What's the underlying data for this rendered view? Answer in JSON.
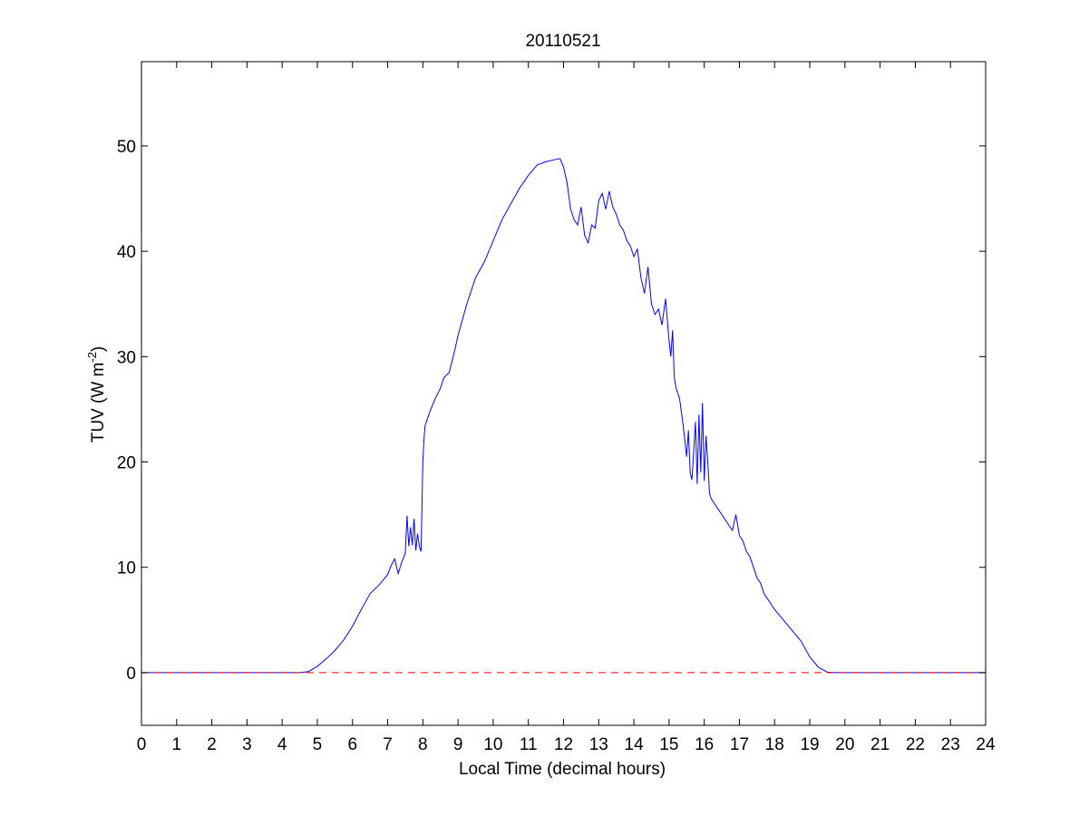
{
  "chart_data": {
    "type": "line",
    "title": "20110521",
    "xlabel": "Local Time (decimal hours)",
    "ylabel": {
      "main": "TUV (W m",
      "superscript": "-2",
      "close": ")"
    },
    "xlim": [
      0,
      24
    ],
    "ylim": [
      -5,
      58
    ],
    "x_ticks": [
      0,
      1,
      2,
      3,
      4,
      5,
      6,
      7,
      8,
      9,
      10,
      11,
      12,
      13,
      14,
      15,
      16,
      17,
      18,
      19,
      20,
      21,
      22,
      23,
      24
    ],
    "y_ticks": [
      0,
      10,
      20,
      30,
      40,
      50
    ],
    "grid": false,
    "series": [
      {
        "color": "#0000ff",
        "style": "solid",
        "x": [
          0,
          4.5,
          4.75,
          5.0,
          5.25,
          5.5,
          5.75,
          6.0,
          6.25,
          6.5,
          6.75,
          7.0,
          7.1,
          7.2,
          7.3,
          7.4,
          7.5,
          7.55,
          7.6,
          7.65,
          7.7,
          7.75,
          7.8,
          7.85,
          7.9,
          7.95,
          8.0,
          8.03,
          8.06,
          8.1,
          8.2,
          8.35,
          8.5,
          8.6,
          8.75,
          8.9,
          9.0,
          9.25,
          9.5,
          9.75,
          10.0,
          10.25,
          10.5,
          10.75,
          11.0,
          11.25,
          11.5,
          11.75,
          11.9,
          12.0,
          12.1,
          12.2,
          12.3,
          12.4,
          12.5,
          12.6,
          12.7,
          12.8,
          12.9,
          13.0,
          13.1,
          13.2,
          13.3,
          13.4,
          13.5,
          13.6,
          13.7,
          13.8,
          13.9,
          14.0,
          14.1,
          14.2,
          14.3,
          14.4,
          14.5,
          14.6,
          14.7,
          14.8,
          14.9,
          15.0,
          15.05,
          15.1,
          15.15,
          15.2,
          15.3,
          15.4,
          15.45,
          15.5,
          15.55,
          15.6,
          15.65,
          15.7,
          15.75,
          15.8,
          15.85,
          15.9,
          15.95,
          16.0,
          16.05,
          16.1,
          16.15,
          16.2,
          16.3,
          16.4,
          16.5,
          16.6,
          16.7,
          16.8,
          16.9,
          17.0,
          17.1,
          17.2,
          17.3,
          17.4,
          17.5,
          17.6,
          17.7,
          17.8,
          17.9,
          18.0,
          18.25,
          18.5,
          18.75,
          19.0,
          19.25,
          19.5,
          19.75,
          20.0,
          24.0
        ],
        "y": [
          0,
          0,
          0.1,
          0.6,
          1.3,
          2.1,
          3.1,
          4.4,
          6.0,
          7.5,
          8.3,
          9.3,
          10.2,
          10.8,
          9.4,
          10.5,
          11.3,
          14.9,
          12.0,
          13.8,
          12.1,
          14.6,
          11.6,
          13.2,
          12.0,
          11.5,
          20.0,
          22.0,
          23.4,
          23.8,
          24.8,
          26.0,
          27.0,
          28.0,
          28.5,
          30.5,
          32.0,
          35.0,
          37.5,
          39.0,
          41.0,
          43.0,
          44.5,
          46.0,
          47.2,
          48.2,
          48.5,
          48.7,
          48.8,
          48.0,
          46.5,
          44.0,
          43.0,
          42.5,
          44.2,
          41.5,
          40.8,
          42.5,
          42.2,
          44.8,
          45.5,
          44.0,
          45.7,
          44.2,
          43.5,
          42.5,
          42.0,
          41.0,
          40.5,
          39.5,
          40.2,
          37.5,
          36.0,
          38.5,
          35.0,
          34.0,
          34.5,
          33.0,
          35.5,
          31.5,
          30.0,
          32.5,
          28.0,
          27.0,
          26.0,
          23.5,
          22.0,
          20.5,
          23.0,
          19.0,
          18.3,
          21.0,
          23.8,
          17.9,
          24.5,
          19.0,
          25.6,
          18.2,
          22.5,
          20.0,
          17.0,
          16.5,
          16.0,
          15.5,
          15.0,
          14.5,
          14.0,
          13.5,
          15.0,
          13.0,
          12.5,
          11.5,
          11.0,
          10.0,
          9.0,
          8.5,
          7.5,
          7.0,
          6.5,
          6.0,
          5.0,
          4.0,
          3.0,
          1.5,
          0.5,
          0.05,
          0,
          0,
          0
        ]
      },
      {
        "color": "#ff0000",
        "style": "dashed",
        "x": [
          0,
          24
        ],
        "y": [
          0,
          0
        ]
      }
    ]
  }
}
